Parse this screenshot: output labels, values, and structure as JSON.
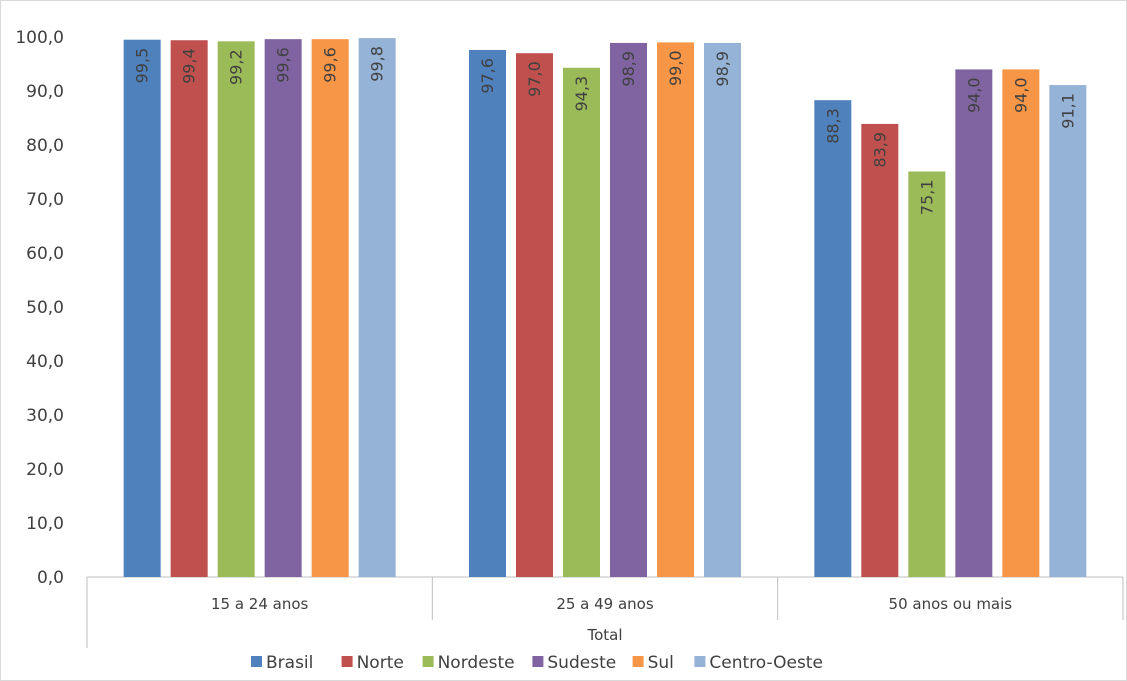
{
  "chart_data": {
    "type": "bar",
    "categories": [
      "15 a 24 anos",
      "25 a 49 anos",
      "50 anos ou mais"
    ],
    "group_label": "Total",
    "ylim": [
      0,
      100
    ],
    "yticks": [
      "0,0",
      "10,0",
      "20,0",
      "30,0",
      "40,0",
      "50,0",
      "60,0",
      "70,0",
      "80,0",
      "90,0",
      "100,0"
    ],
    "ytick_values": [
      0,
      10,
      20,
      30,
      40,
      50,
      60,
      70,
      80,
      90,
      100
    ],
    "legend_position": "bottom",
    "grid": false,
    "series": [
      {
        "name": "Brasil",
        "color": "#4f81bd",
        "values": [
          99.5,
          97.6,
          88.3
        ],
        "labels": [
          "99,5",
          "97,6",
          "88,3"
        ]
      },
      {
        "name": "Norte",
        "color": "#c0504d",
        "values": [
          99.4,
          97.0,
          83.9
        ],
        "labels": [
          "99,4",
          "97,0",
          "83,9"
        ]
      },
      {
        "name": "Nordeste",
        "color": "#9bbb59",
        "values": [
          99.2,
          94.3,
          75.1
        ],
        "labels": [
          "99,2",
          "94,3",
          "75,1"
        ]
      },
      {
        "name": "Sudeste",
        "color": "#8064a2",
        "values": [
          99.6,
          98.9,
          94.0
        ],
        "labels": [
          "99,6",
          "98,9",
          "94,0"
        ]
      },
      {
        "name": "Sul",
        "color": "#f79646",
        "values": [
          99.6,
          99.0,
          94.0
        ],
        "labels": [
          "99,6",
          "99,0",
          "94,0"
        ]
      },
      {
        "name": "Centro-Oeste",
        "color": "#95b3d7",
        "values": [
          99.8,
          98.9,
          91.1
        ],
        "labels": [
          "99,8",
          "98,9",
          "91,1"
        ]
      }
    ]
  }
}
